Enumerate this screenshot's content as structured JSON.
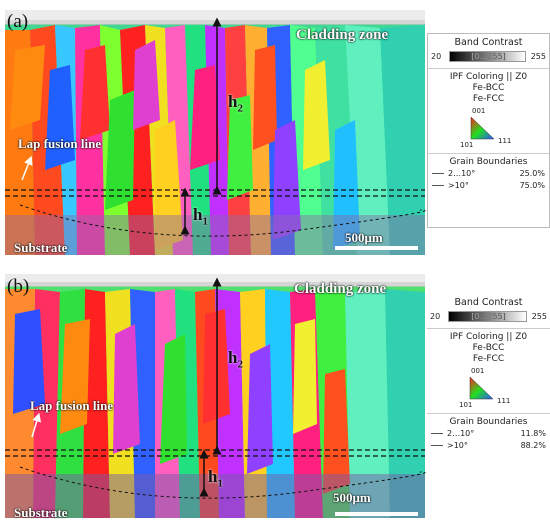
{
  "panel_a": {
    "letter": "(a)",
    "cladding_label": "Cladding zone",
    "lap_label": "Lap fusion line",
    "substrate_label": "Substrate",
    "scale_label": "500μm",
    "h_upper": "h",
    "h_upper_sub": "2",
    "h_lower": "h",
    "h_lower_sub": "1",
    "legend": {
      "band_title": "Band Contrast",
      "band_min": "20",
      "band_range": "[0…255]",
      "band_max": "255",
      "ipf_title": "IPF Coloring || Z0",
      "phase_1": "Fe-BCC",
      "phase_2": "Fe-FCC",
      "tri_top": "001",
      "tri_left": "101",
      "tri_right": "111",
      "gb_title": "Grain Boundaries",
      "gb_rows": [
        {
          "name": "2…10°",
          "value": "25.0%"
        },
        {
          "name": ">10°",
          "value": "75.0%"
        }
      ]
    }
  },
  "panel_b": {
    "letter": "(b)",
    "cladding_label": "Cladding zone",
    "lap_label": "Lap fusion line",
    "substrate_label": "Substrate",
    "scale_label": "500μm",
    "h_upper": "h",
    "h_upper_sub": "2",
    "h_lower": "h",
    "h_lower_sub": "1",
    "legend": {
      "band_title": "Band Contrast",
      "band_min": "20",
      "band_range": "[0…255]",
      "band_max": "255",
      "ipf_title": "IPF Coloring || Z0",
      "phase_1": "Fe-BCC",
      "phase_2": "Fe-FCC",
      "tri_top": "001",
      "tri_left": "101",
      "tri_right": "111",
      "gb_title": "Grain Boundaries",
      "gb_rows": [
        {
          "name": "2…10°",
          "value": "11.8%"
        },
        {
          "name": ">10°",
          "value": "88.2%"
        }
      ]
    }
  },
  "colors": {
    "ipf_red": "#ff2020",
    "ipf_green": "#20e020",
    "ipf_blue": "#3050ff",
    "ipf_cyan": "#30d8c8",
    "ipf_magenta": "#e040d0",
    "ipf_yellow": "#e8e020",
    "ipf_orange": "#ff8a10"
  }
}
